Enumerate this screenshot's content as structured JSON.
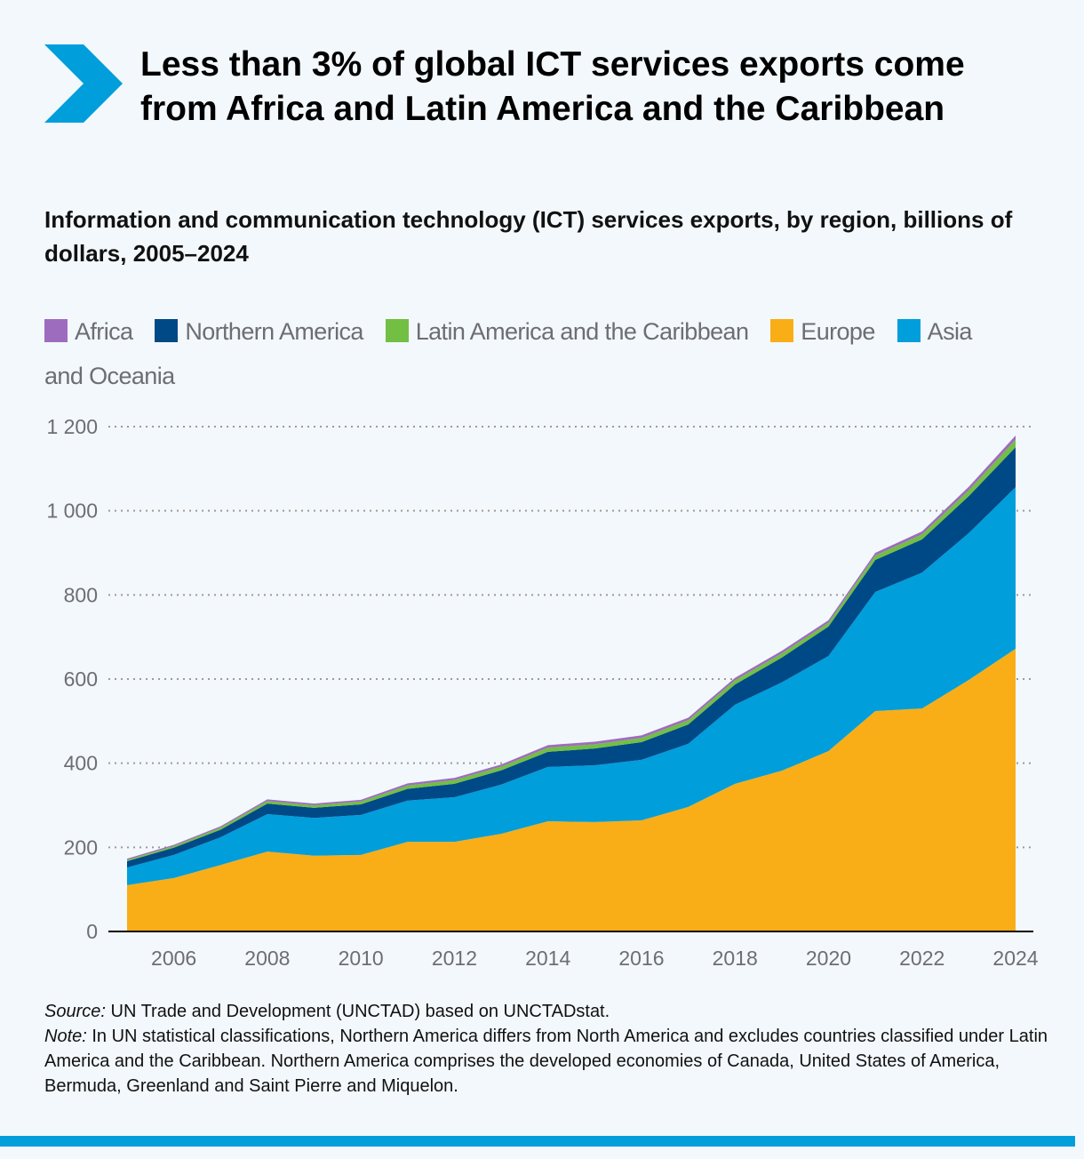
{
  "title": "Less than 3% of global ICT services exports come from Africa and Latin America and the Caribbean",
  "subtitle": "Information and communication technology (ICT) services exports, by region, billions of dollars, 2005–2024",
  "icon": "chevron-right-icon",
  "legend": [
    {
      "label": "Africa",
      "color": "#9e6cbf"
    },
    {
      "label": "Northern America",
      "color": "#004987"
    },
    {
      "label": "Latin America and the Caribbean",
      "color": "#72bf44"
    },
    {
      "label": "Europe",
      "color": "#f9ae17"
    },
    {
      "label": "Asia and Oceania",
      "color": "#009edb"
    }
  ],
  "footer": {
    "source_label": "Source:",
    "source_text": " UN Trade and Development (UNCTAD) based on UNCTADstat.",
    "note_label": "Note:",
    "note_text": " In UN statistical classifications, Northern America differs from North America and excludes countries classified under Latin America and the Caribbean. Northern America comprises the developed economies of Canada, United States of America, Bermuda, Greenland and Saint Pierre and Miquelon."
  },
  "chart_data": {
    "type": "area",
    "stacked": true,
    "x": [
      2005,
      2006,
      2007,
      2008,
      2009,
      2010,
      2011,
      2012,
      2013,
      2014,
      2015,
      2016,
      2017,
      2018,
      2019,
      2020,
      2021,
      2022,
      2023,
      2024
    ],
    "xticks": [
      "2006",
      "2008",
      "2010",
      "2012",
      "2014",
      "2016",
      "2018",
      "2020",
      "2022",
      "2024"
    ],
    "yticks": [
      "0",
      "200",
      "400",
      "600",
      "800",
      "1 000",
      "1 200"
    ],
    "ylim": [
      0,
      1200
    ],
    "grid": true,
    "legend_position": "top",
    "series": [
      {
        "name": "Europe",
        "color": "#f9ae17",
        "values": [
          110,
          127,
          158,
          190,
          180,
          182,
          213,
          213,
          232,
          262,
          260,
          264,
          296,
          351,
          382,
          429,
          524,
          530,
          598,
          672
        ]
      },
      {
        "name": "Asia and Oceania",
        "color": "#009edb",
        "values": [
          42,
          55,
          66,
          89,
          90,
          95,
          98,
          106,
          117,
          129,
          135,
          144,
          150,
          188,
          210,
          226,
          283,
          323,
          349,
          384
        ]
      },
      {
        "name": "Northern America",
        "color": "#004987",
        "values": [
          15,
          17,
          18,
          25,
          24,
          25,
          28,
          32,
          34,
          36,
          40,
          42,
          46,
          48,
          59,
          70,
          76,
          79,
          88,
          95
        ]
      },
      {
        "name": "Latin America and the Caribbean",
        "color": "#72bf44",
        "values": [
          3,
          4,
          5,
          6,
          6,
          7,
          8,
          9,
          9,
          10,
          10,
          10,
          10,
          10,
          10,
          9,
          11,
          12,
          14,
          18
        ]
      },
      {
        "name": "Africa",
        "color": "#9e6cbf",
        "values": [
          3,
          3,
          3,
          4,
          4,
          4,
          5,
          5,
          5,
          6,
          6,
          6,
          6,
          6,
          6,
          6,
          6,
          7,
          8,
          10
        ]
      }
    ]
  }
}
